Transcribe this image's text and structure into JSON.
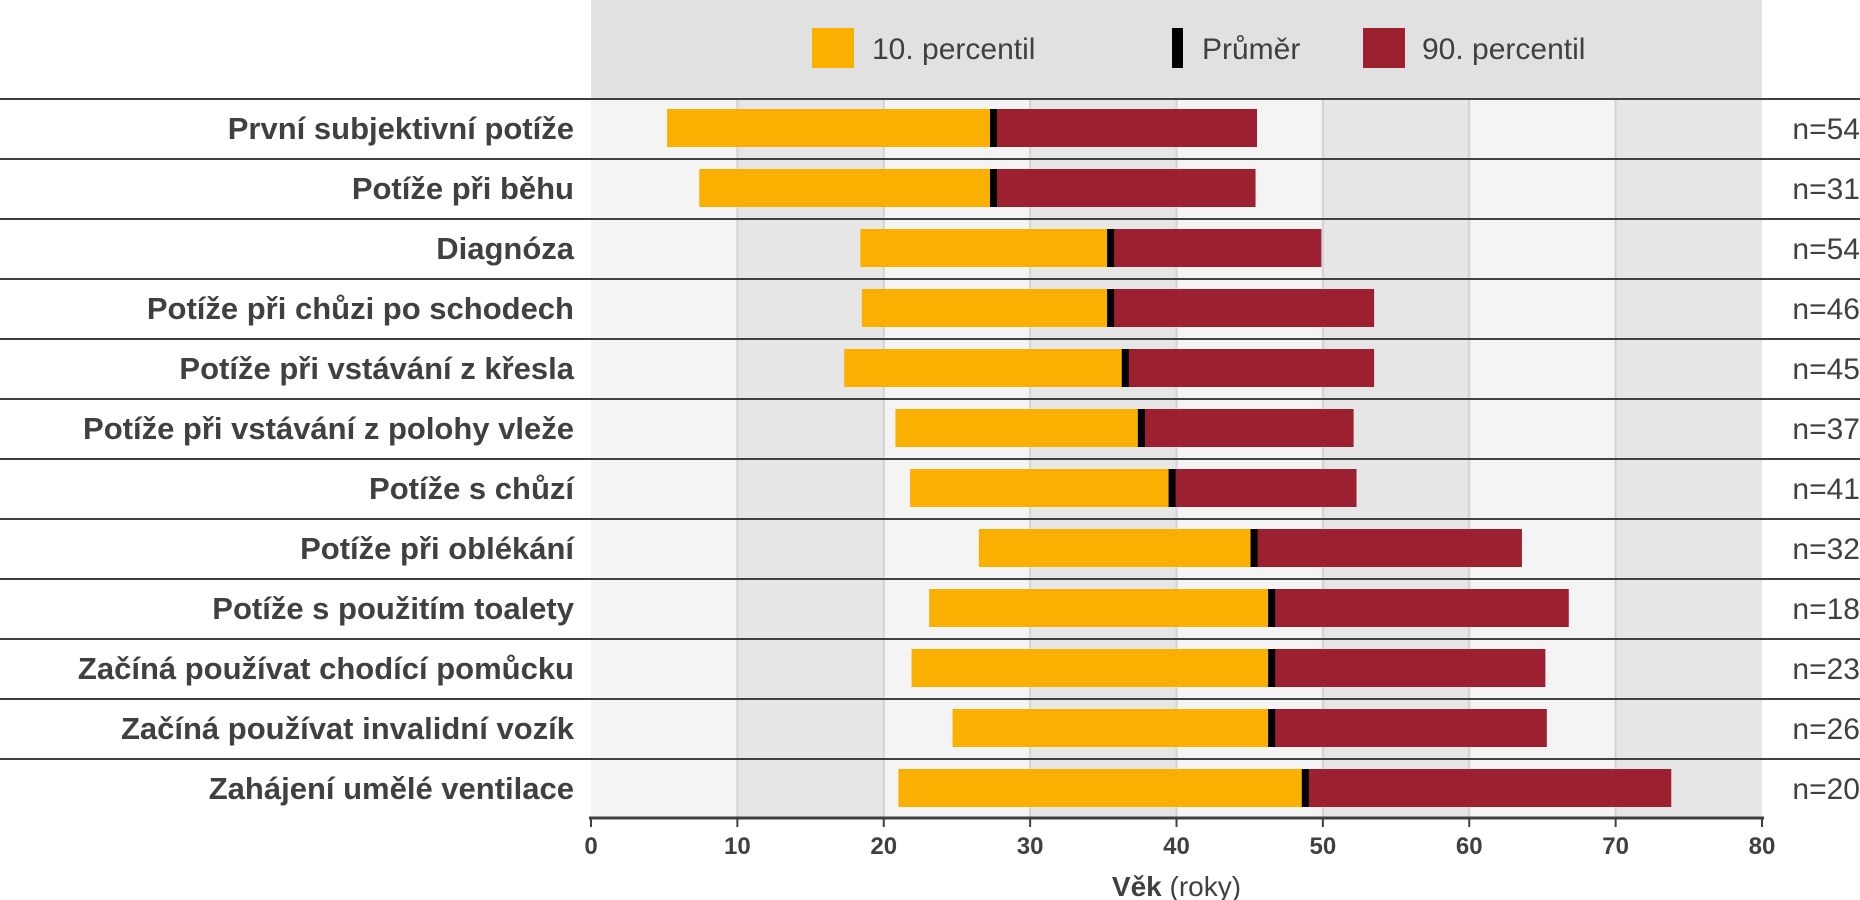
{
  "chart_data": {
    "type": "bar",
    "subtype": "horizontal-stacked-range",
    "categories": [
      "První subjektivní potíže",
      "Potíže při běhu",
      "Diagnóza",
      "Potíže při chůzi po schodech",
      "Potíže při vstávání z křesla",
      "Potíže při vstávání z polohy vleže",
      "Potíže s chůzí",
      "Potíže při oblékání",
      "Potíže s použitím toalety",
      "Začíná používat chodící pomůcku",
      "Začíná používat invalidní vozík",
      "Zahájení umělé ventilace"
    ],
    "series": [
      {
        "name": "10. percentil",
        "values": [
          5.2,
          7.4,
          18.4,
          18.5,
          17.3,
          20.8,
          21.8,
          26.5,
          23.1,
          21.9,
          24.7,
          21.0
        ]
      },
      {
        "name": "Průměr",
        "values": [
          27.5,
          27.5,
          35.5,
          35.5,
          36.5,
          37.6,
          39.7,
          45.3,
          46.5,
          46.5,
          46.5,
          48.8
        ]
      },
      {
        "name": "90. percentil",
        "values": [
          45.5,
          45.4,
          49.9,
          53.5,
          53.5,
          52.1,
          52.3,
          63.6,
          66.8,
          65.2,
          65.3,
          73.8
        ]
      }
    ],
    "n_labels": [
      "n=54",
      "n=31",
      "n=54",
      "n=46",
      "n=45",
      "n=37",
      "n=41",
      "n=32",
      "n=18",
      "n=23",
      "n=26",
      "n=20"
    ],
    "xlim": [
      0,
      80
    ],
    "xticks": [
      "0",
      "10",
      "20",
      "30",
      "40",
      "50",
      "60",
      "70",
      "80"
    ],
    "xlabel_bold": "Věk",
    "xlabel_rest": " (roky)",
    "grid": true,
    "legend_position": "top",
    "colors": {
      "p10": "#F9B000",
      "mean": "#000000",
      "p90": "#9C2030",
      "band_light": "#F4F4F4",
      "band_dark": "#E6E6E6",
      "legend_bg": "#E1E1E1",
      "separator": "#404040",
      "grid": "#D2D2D2",
      "text": "#404040"
    }
  }
}
